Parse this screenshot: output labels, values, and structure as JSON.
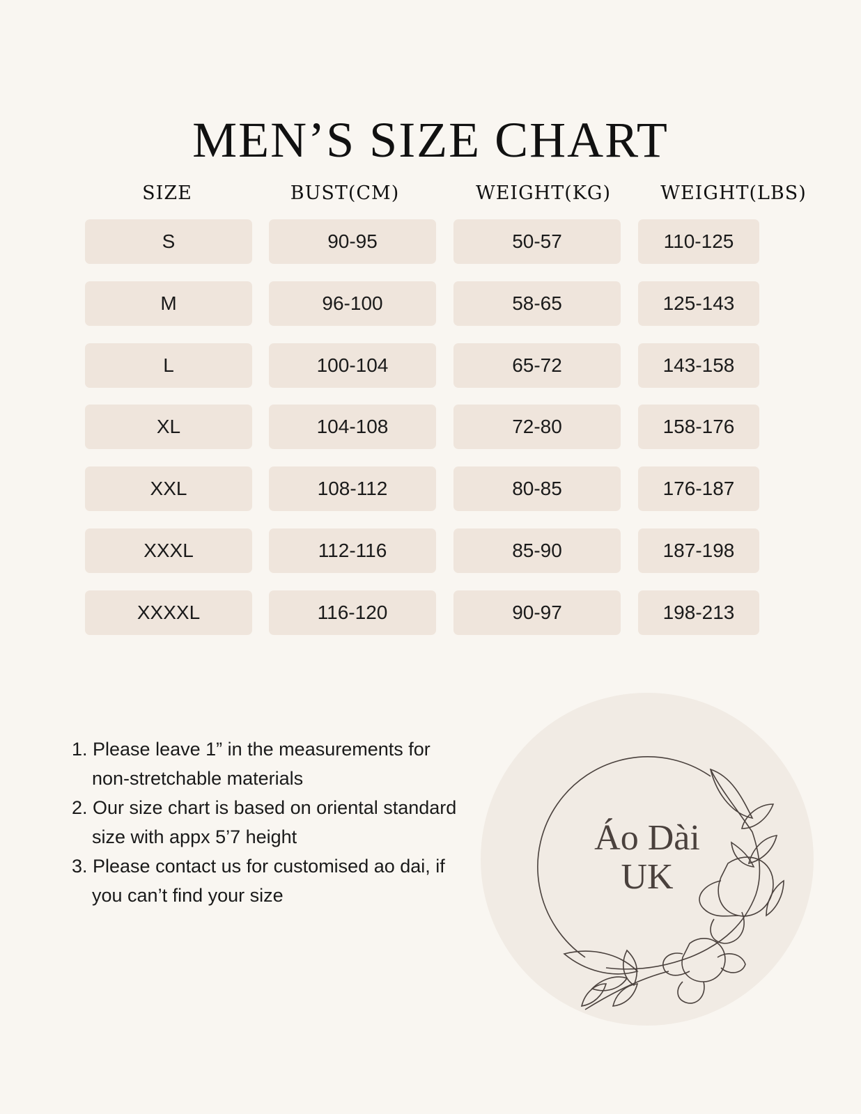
{
  "title": "MEN’S SIZE CHART",
  "table": {
    "headers": [
      "SIZE",
      "BUST(CM)",
      "WEIGHT(KG)",
      "WEIGHT(LBS)"
    ],
    "rows": [
      [
        "S",
        "90-95",
        "50-57",
        "110-125"
      ],
      [
        "M",
        "96-100",
        "58-65",
        "125-143"
      ],
      [
        "L",
        "100-104",
        "65-72",
        "143-158"
      ],
      [
        "XL",
        "104-108",
        "72-80",
        "158-176"
      ],
      [
        "XXL",
        "108-112",
        "80-85",
        "176-187"
      ],
      [
        "XXXL",
        "112-116",
        "85-90",
        "187-198"
      ],
      [
        "XXXXL",
        "116-120",
        "90-97",
        "198-213"
      ]
    ]
  },
  "notes": [
    "1.  Please leave 1” in the measurements for non-stretchable materials",
    "2.  Our size chart is based on oriental standard size with appx 5’7 height",
    "3.  Please contact us for customised ao dai, if you can’t find your size"
  ],
  "logo": {
    "line1": "Áo Dài",
    "line2": "UK"
  },
  "colors": {
    "background": "#f9f6f1",
    "cell": "#efe5dc",
    "logo_circle": "#f1ebe4",
    "logo_ink": "#4a413d"
  }
}
